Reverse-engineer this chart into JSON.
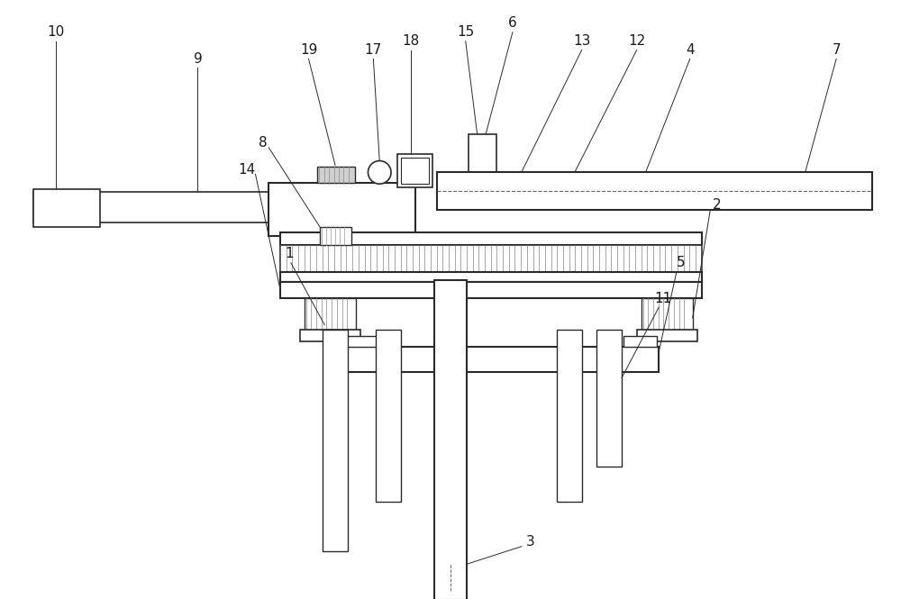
{
  "bg_color": "#ffffff",
  "lc": "#2a2a2a",
  "fig_width": 10.0,
  "fig_height": 6.65,
  "label_fs": 11,
  "label_color": "#1a1a1a"
}
